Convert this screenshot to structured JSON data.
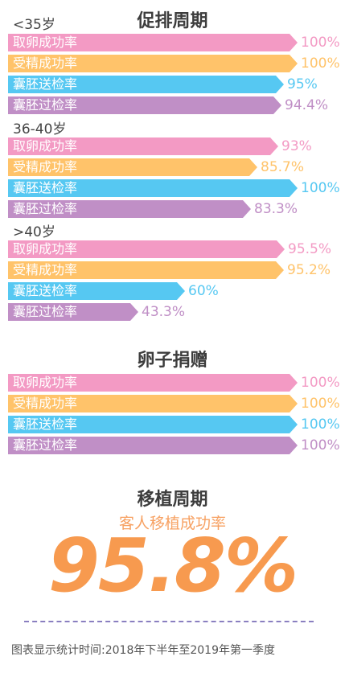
{
  "colors": {
    "retrieval": "#f39ac4",
    "fertilization": "#ffc36a",
    "transfer": "#56c8f2",
    "implantation": "#c08fc6"
  },
  "sections": [
    {
      "title": "促排周期"
    },
    {
      "title": "卵子捐赠"
    }
  ],
  "chart_data": [
    {
      "type": "bar",
      "title": "促排周期",
      "groups": [
        {
          "label": "<35岁",
          "bars": [
            {
              "label": "取卵成功率",
              "value": 100,
              "display": "100%",
              "color_key": "retrieval"
            },
            {
              "label": "受精成功率",
              "value": 100,
              "display": "100%",
              "color_key": "fertilization"
            },
            {
              "label": "囊胚送检率",
              "value": 95,
              "display": "95%",
              "color_key": "transfer"
            },
            {
              "label": "囊胚过检率",
              "value": 94.4,
              "display": "94.4%",
              "color_key": "implantation"
            }
          ]
        },
        {
          "label": "36-40岁",
          "bars": [
            {
              "label": "取卵成功率",
              "value": 93,
              "display": "93%",
              "color_key": "retrieval"
            },
            {
              "label": "受精成功率",
              "value": 85.7,
              "display": "85.7%",
              "color_key": "fertilization"
            },
            {
              "label": "囊胚送检率",
              "value": 100,
              "display": "100%",
              "color_key": "transfer"
            },
            {
              "label": "囊胚过检率",
              "value": 83.3,
              "display": "83.3%",
              "color_key": "implantation"
            }
          ]
        },
        {
          "label": ">40岁",
          "bars": [
            {
              "label": "取卵成功率",
              "value": 95.5,
              "display": "95.5%",
              "color_key": "retrieval"
            },
            {
              "label": "受精成功率",
              "value": 95.2,
              "display": "95.2%",
              "color_key": "fertilization"
            },
            {
              "label": "囊胚送检率",
              "value": 60,
              "display": "60%",
              "color_key": "transfer"
            },
            {
              "label": "囊胚过检率",
              "value": 43.3,
              "display": "43.3%",
              "color_key": "implantation"
            }
          ]
        }
      ],
      "xlim": [
        0,
        100
      ]
    },
    {
      "type": "bar",
      "title": "卵子捐赠",
      "groups": [
        {
          "label": "",
          "bars": [
            {
              "label": "取卵成功率",
              "value": 100,
              "display": "100%",
              "color_key": "retrieval"
            },
            {
              "label": "受精成功率",
              "value": 100,
              "display": "100%",
              "color_key": "fertilization"
            },
            {
              "label": "囊胚送检率",
              "value": 100,
              "display": "100%",
              "color_key": "transfer"
            },
            {
              "label": "囊胚过检率",
              "value": 100,
              "display": "100%",
              "color_key": "implantation"
            }
          ]
        }
      ],
      "xlim": [
        0,
        100
      ]
    }
  ],
  "transfer_cycle": {
    "title": "移植周期",
    "subtitle": "客人移植成功率",
    "rate": "95.8%"
  },
  "footnote": "图表显示统计时间:2018年下半年至2019年第一季度"
}
